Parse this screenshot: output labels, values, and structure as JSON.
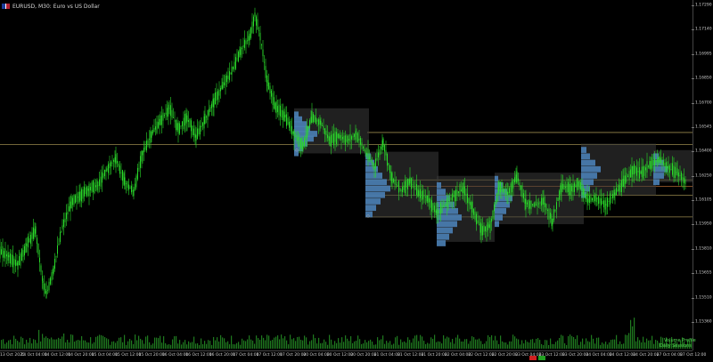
{
  "window": {
    "symbol_title": "EURUSD, M30:  Euro vs US Dollar",
    "flag_icon": "eu-us-flag-icon"
  },
  "price_axis": {
    "labels": [
      "1.17290",
      "1.17140",
      "1.16995",
      "1.16850",
      "1.16700",
      "1.16545",
      "1.16400",
      "1.16250",
      "1.16105",
      "1.15950",
      "1.15810",
      "1.15655",
      "1.15510",
      "1.15360"
    ]
  },
  "time_axis": {
    "labels": [
      "13 Oct 2025",
      "14 Oct 04:00",
      "14 Oct 12:00",
      "14 Oct 20:00",
      "15 Oct 04:00",
      "15 Oct 12:00",
      "15 Oct 20:00",
      "16 Oct 04:00",
      "16 Oct 12:00",
      "16 Oct 20:00",
      "17 Oct 04:00",
      "17 Oct 12:00",
      "17 Oct 20:00",
      "20 Oct 04:00",
      "20 Oct 12:00",
      "20 Oct 20:00",
      "21 Oct 04:00",
      "21 Oct 12:00",
      "21 Oct 20:00",
      "22 Oct 04:00",
      "22 Oct 12:00",
      "22 Oct 20:00",
      "23 Oct 04:00",
      "23 Oct 12:00",
      "23 Oct 20:00",
      "24 Oct 04:00",
      "24 Oct 12:00",
      "24 Oct 20:00",
      "27 Oct 04:00",
      "27 Oct 12:00"
    ]
  },
  "indicator": {
    "legend_line1": "Volume Profile",
    "legend_line2": "Daily Sessions"
  },
  "colors": {
    "candle": "#2ad92a",
    "profile": "#4a7fb5",
    "value_area_box": "#3a3a3a",
    "level_line": "#b4a05a",
    "poc_line": "#cc7a3a",
    "volume_bar": "#1f7a1f",
    "red_pill": "#d02020",
    "green_pill": "#22a022"
  },
  "chart_data": {
    "type": "candlestick",
    "title": "",
    "y_range": [
      1.1533,
      1.1732
    ],
    "key_levels": [
      1.1653,
      1.16455,
      1.16235,
      1.16195,
      1.1614,
      1.16005
    ],
    "series_path": [
      [
        0,
        1.1579
      ],
      [
        10,
        1.1576
      ],
      [
        20,
        1.1571
      ],
      [
        30,
        1.1583
      ],
      [
        40,
        1.1592
      ],
      [
        48,
        1.156
      ],
      [
        52,
        1.1552
      ],
      [
        60,
        1.1568
      ],
      [
        70,
        1.1594
      ],
      [
        80,
        1.1609
      ],
      [
        90,
        1.1614
      ],
      [
        100,
        1.1618
      ],
      [
        110,
        1.162
      ],
      [
        120,
        1.163
      ],
      [
        130,
        1.1637
      ],
      [
        140,
        1.1622
      ],
      [
        150,
        1.1616
      ],
      [
        160,
        1.164
      ],
      [
        170,
        1.1652
      ],
      [
        180,
        1.166
      ],
      [
        190,
        1.1668
      ],
      [
        200,
        1.1655
      ],
      [
        210,
        1.1662
      ],
      [
        220,
        1.165
      ],
      [
        230,
        1.1661
      ],
      [
        240,
        1.1672
      ],
      [
        250,
        1.1682
      ],
      [
        260,
        1.1691
      ],
      [
        270,
        1.1704
      ],
      [
        280,
        1.1712
      ],
      [
        286,
        1.1726
      ],
      [
        292,
        1.1713
      ],
      [
        300,
        1.1684
      ],
      [
        310,
        1.1668
      ],
      [
        320,
        1.1663
      ],
      [
        330,
        1.1652
      ],
      [
        340,
        1.1645
      ],
      [
        350,
        1.1662
      ],
      [
        360,
        1.1659
      ],
      [
        370,
        1.1648
      ],
      [
        380,
        1.1651
      ],
      [
        390,
        1.1648
      ],
      [
        400,
        1.1652
      ],
      [
        410,
        1.1641
      ],
      [
        420,
        1.1632
      ],
      [
        430,
        1.1647
      ],
      [
        440,
        1.1624
      ],
      [
        450,
        1.1617
      ],
      [
        460,
        1.1623
      ],
      [
        470,
        1.1615
      ],
      [
        480,
        1.1612
      ],
      [
        490,
        1.1603
      ],
      [
        500,
        1.1608
      ],
      [
        510,
        1.1614
      ],
      [
        520,
        1.1618
      ],
      [
        530,
        1.1606
      ],
      [
        540,
        1.1592
      ],
      [
        550,
        1.1595
      ],
      [
        560,
        1.1619
      ],
      [
        570,
        1.1615
      ],
      [
        580,
        1.1626
      ],
      [
        590,
        1.1609
      ],
      [
        600,
        1.1608
      ],
      [
        610,
        1.161
      ],
      [
        620,
        1.1598
      ],
      [
        630,
        1.162
      ],
      [
        640,
        1.1618
      ],
      [
        650,
        1.1621
      ],
      [
        660,
        1.1611
      ],
      [
        670,
        1.1612
      ],
      [
        680,
        1.1608
      ],
      [
        690,
        1.1615
      ],
      [
        700,
        1.1622
      ],
      [
        710,
        1.163
      ],
      [
        720,
        1.1628
      ],
      [
        730,
        1.1633
      ],
      [
        740,
        1.1636
      ],
      [
        750,
        1.1631
      ],
      [
        760,
        1.1628
      ],
      [
        770,
        1.1622
      ]
    ],
    "volume_profiles": [
      {
        "session": "20 Oct",
        "center": 1.16545,
        "rows": [
          1.1666,
          1.1663,
          1.166,
          1.1657,
          1.1654,
          1.1651,
          1.1648,
          1.1645,
          1.1642
        ],
        "lengths": [
          5,
          9,
          14,
          18,
          26,
          22,
          15,
          10,
          5
        ]
      },
      {
        "session": "21 Oct",
        "center": 1.1622,
        "rows": [
          1.164,
          1.1636,
          1.1632,
          1.1628,
          1.1624,
          1.162,
          1.1616,
          1.1612,
          1.1608,
          1.1604
        ],
        "lengths": [
          6,
          10,
          14,
          19,
          24,
          28,
          22,
          17,
          12,
          8
        ]
      },
      {
        "session": "22 Oct",
        "center": 1.1605,
        "rows": [
          1.1622,
          1.1618,
          1.1614,
          1.161,
          1.1606,
          1.1602,
          1.1598,
          1.1594,
          1.159,
          1.1586
        ],
        "lengths": [
          5,
          10,
          15,
          20,
          24,
          28,
          23,
          18,
          14,
          10
        ]
      },
      {
        "session": "23 Oct",
        "center": 1.1612,
        "rows": [
          1.1626,
          1.1622,
          1.1618,
          1.1614,
          1.161,
          1.1606,
          1.1602,
          1.1598
        ],
        "lengths": [
          4,
          9,
          14,
          20,
          17,
          13,
          9,
          5
        ]
      },
      {
        "session": "24 Oct",
        "center": 1.163,
        "rows": [
          1.1644,
          1.164,
          1.1636,
          1.1632,
          1.1628,
          1.1624,
          1.162,
          1.1616
        ],
        "lengths": [
          6,
          10,
          16,
          22,
          18,
          14,
          10,
          6
        ]
      },
      {
        "session": "27 Oct",
        "center": 1.1632,
        "rows": [
          1.164,
          1.1636,
          1.1632,
          1.1628,
          1.1624
        ],
        "lengths": [
          6,
          12,
          16,
          12,
          7
        ]
      }
    ],
    "volume_bars_seed": 7
  }
}
